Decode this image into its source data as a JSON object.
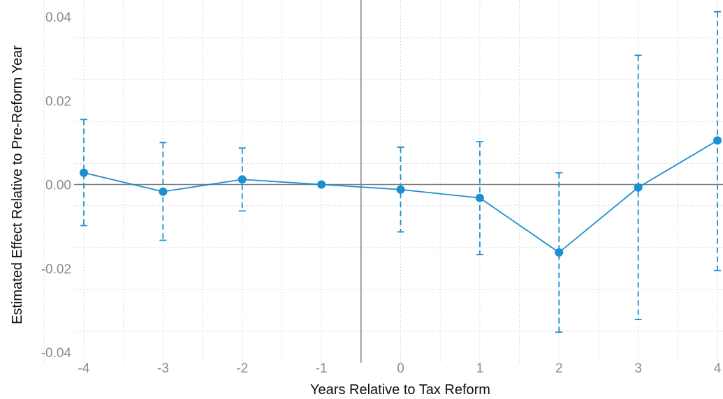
{
  "chart_data": {
    "type": "line",
    "title": "",
    "xlabel": "Years Relative to Tax Reform",
    "ylabel": "Estimated Effect Relative to Pre-Reform Year",
    "x": [
      -4,
      -3,
      -2,
      -1,
      0,
      1,
      2,
      3,
      4
    ],
    "series": [
      {
        "values": [
          0.0028,
          -0.0017,
          0.0012,
          0.0,
          -0.0012,
          -0.0032,
          -0.0162,
          -0.0007,
          0.0105
        ],
        "ci_lower": [
          -0.0098,
          -0.0133,
          -0.0063,
          0.0,
          -0.0113,
          -0.0167,
          -0.0352,
          -0.0322,
          -0.0205
        ],
        "ci_upper": [
          0.0155,
          0.01,
          0.0087,
          0.0,
          0.0089,
          0.0102,
          0.0028,
          0.0308,
          0.0412
        ],
        "color": "#1a8fd1"
      }
    ],
    "xlim": [
      -4,
      4
    ],
    "ylim": [
      -0.04,
      0.04
    ],
    "x_ticks": [
      "-4",
      "-3",
      "-2",
      "-1",
      "0",
      "1",
      "2",
      "3",
      "4"
    ],
    "y_ticks": [
      "-0.04",
      "-0.02",
      "0.00",
      "0.02",
      "0.04"
    ],
    "reference_lines": {
      "horizontal_y": 0,
      "vertical_x": -0.5
    },
    "grid": true,
    "grid_style": "dotted",
    "legend": "none"
  }
}
